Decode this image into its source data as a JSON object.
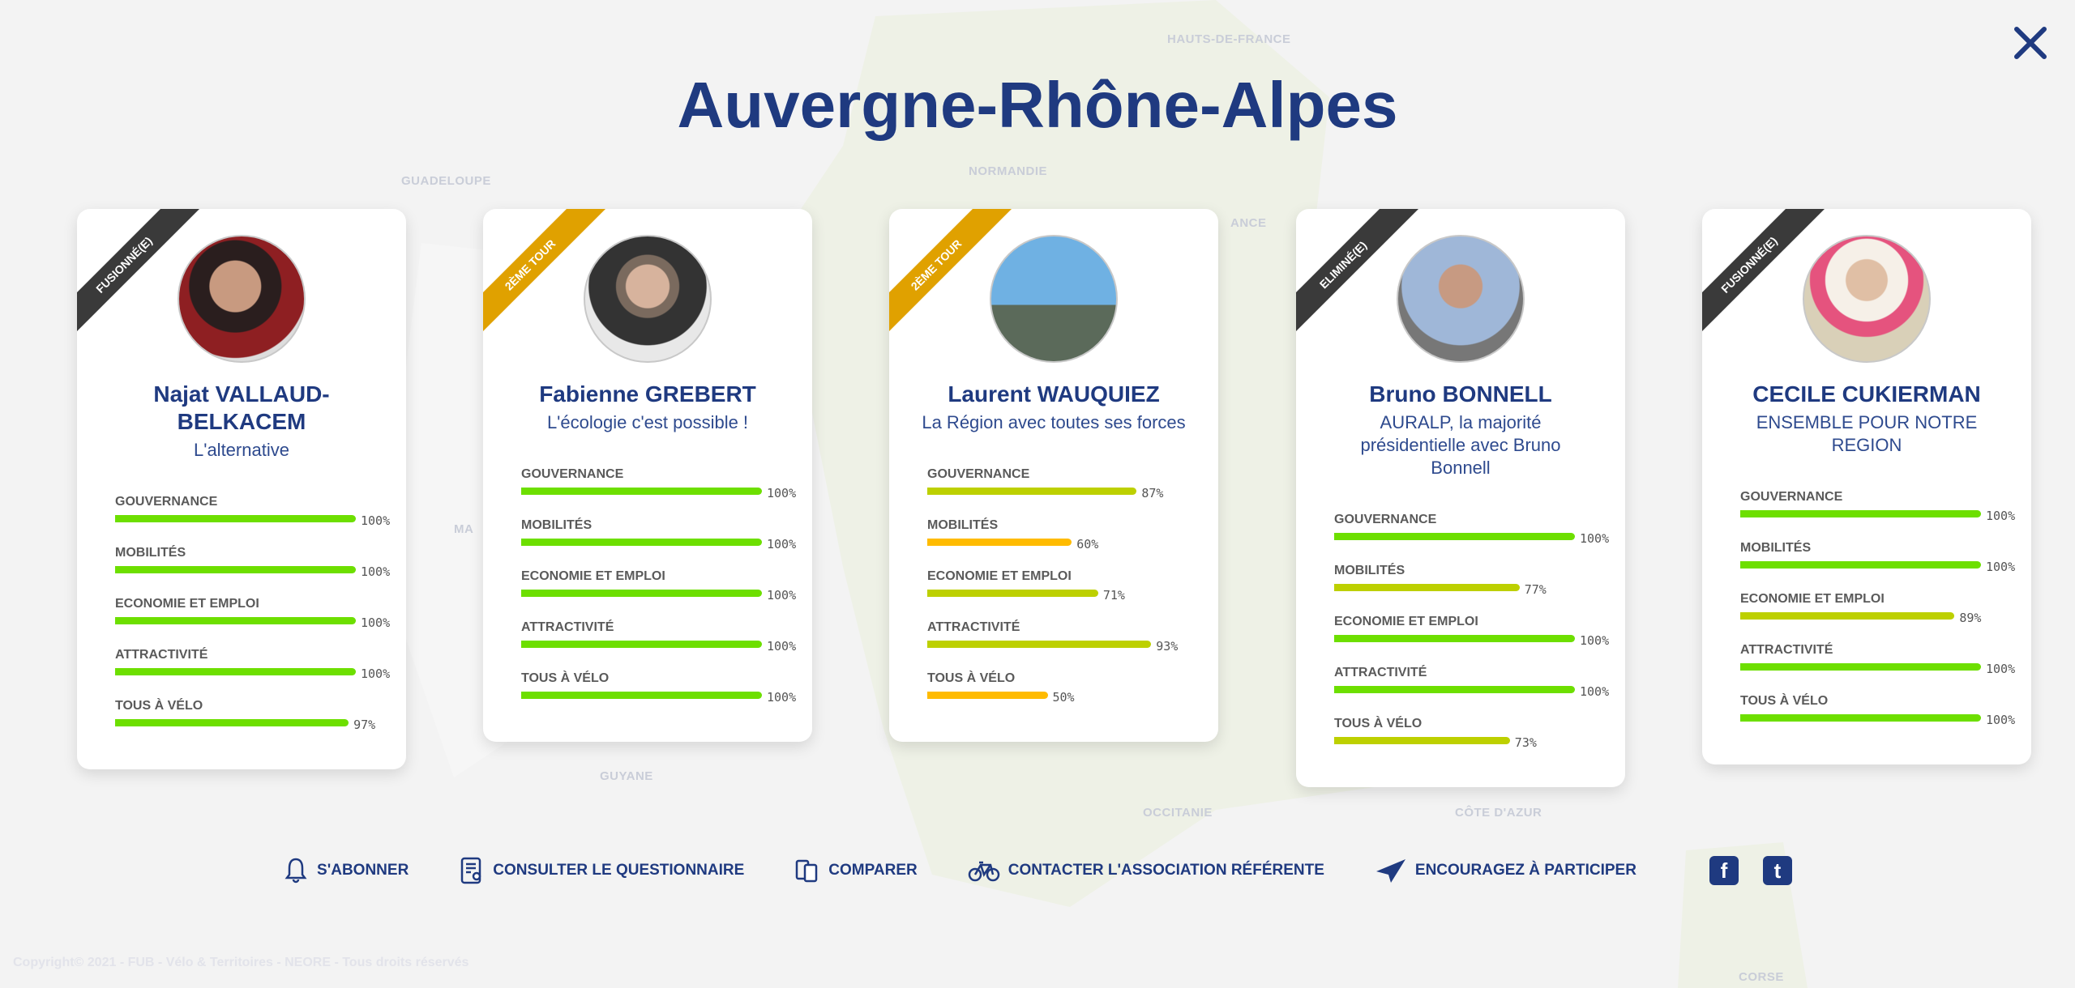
{
  "title": "Auvergne-Rhône-Alpes",
  "colors": {
    "title": "#1f3a80",
    "high": "#6ddf00",
    "mid": "#bdd000",
    "low": "#ffbb00",
    "ribbon_dark": "#3a3a3a",
    "ribbon_gold": "#e0a100"
  },
  "map_labels": [
    "HAUTS-DE-FRANCE",
    "NORMANDIE",
    "GUADELOUPE",
    "GUYANE",
    "OCCITANIE",
    "CÔTE D'AZUR",
    "CORSE",
    "MA",
    "ANCE"
  ],
  "candidates": [
    {
      "status": "FUSIONNÉ(E)",
      "ribbon": "dark",
      "name": "Najat VALLAUD-BELKACEM",
      "slogan": "L'alternative",
      "scores": [
        {
          "label": "GOUVERNANCE",
          "value": 100
        },
        {
          "label": "MOBILITÉS",
          "value": 100
        },
        {
          "label": "ECONOMIE ET EMPLOI",
          "value": 100
        },
        {
          "label": "ATTRACTIVITÉ",
          "value": 100
        },
        {
          "label": "TOUS À VÉLO",
          "value": 97
        }
      ]
    },
    {
      "status": "2ÈME TOUR",
      "ribbon": "gold",
      "name": "Fabienne GREBERT",
      "slogan": "L'écologie c'est possible !",
      "scores": [
        {
          "label": "GOUVERNANCE",
          "value": 100
        },
        {
          "label": "MOBILITÉS",
          "value": 100
        },
        {
          "label": "ECONOMIE ET EMPLOI",
          "value": 100
        },
        {
          "label": "ATTRACTIVITÉ",
          "value": 100
        },
        {
          "label": "TOUS À VÉLO",
          "value": 100
        }
      ]
    },
    {
      "status": "2ÈME TOUR",
      "ribbon": "gold",
      "name": "Laurent WAUQUIEZ",
      "slogan": "La Région avec toutes ses forces",
      "scores": [
        {
          "label": "GOUVERNANCE",
          "value": 87
        },
        {
          "label": "MOBILITÉS",
          "value": 60
        },
        {
          "label": "ECONOMIE ET EMPLOI",
          "value": 71
        },
        {
          "label": "ATTRACTIVITÉ",
          "value": 93
        },
        {
          "label": "TOUS À VÉLO",
          "value": 50
        }
      ]
    },
    {
      "status": "ELIMINÉ(E)",
      "ribbon": "dark",
      "name": "Bruno BONNELL",
      "slogan": "AURALP, la majorité présidentielle avec Bruno Bonnell",
      "scores": [
        {
          "label": "GOUVERNANCE",
          "value": 100
        },
        {
          "label": "MOBILITÉS",
          "value": 77
        },
        {
          "label": "ECONOMIE ET EMPLOI",
          "value": 100
        },
        {
          "label": "ATTRACTIVITÉ",
          "value": 100
        },
        {
          "label": "TOUS À VÉLO",
          "value": 73
        }
      ]
    },
    {
      "status": "FUSIONNÉ(E)",
      "ribbon": "dark",
      "name": "CECILE CUKIERMAN",
      "slogan": "ENSEMBLE POUR NOTRE REGION",
      "scores": [
        {
          "label": "GOUVERNANCE",
          "value": 100
        },
        {
          "label": "MOBILITÉS",
          "value": 100
        },
        {
          "label": "ECONOMIE ET EMPLOI",
          "value": 89
        },
        {
          "label": "ATTRACTIVITÉ",
          "value": 100
        },
        {
          "label": "TOUS À VÉLO",
          "value": 100
        }
      ]
    }
  ],
  "footer": {
    "subscribe": "S'ABONNER",
    "questionnaire": "CONSULTER LE QUESTIONNAIRE",
    "compare": "COMPARER",
    "contact": "CONTACTER L'ASSOCIATION RÉFÉRENTE",
    "encourage": "ENCOURAGEZ À PARTICIPER",
    "facebook": "f",
    "twitter": "t"
  },
  "copyright": "Copyright© 2021 - FUB - Vélo & Territoires - NEORE - Tous droits réservés"
}
